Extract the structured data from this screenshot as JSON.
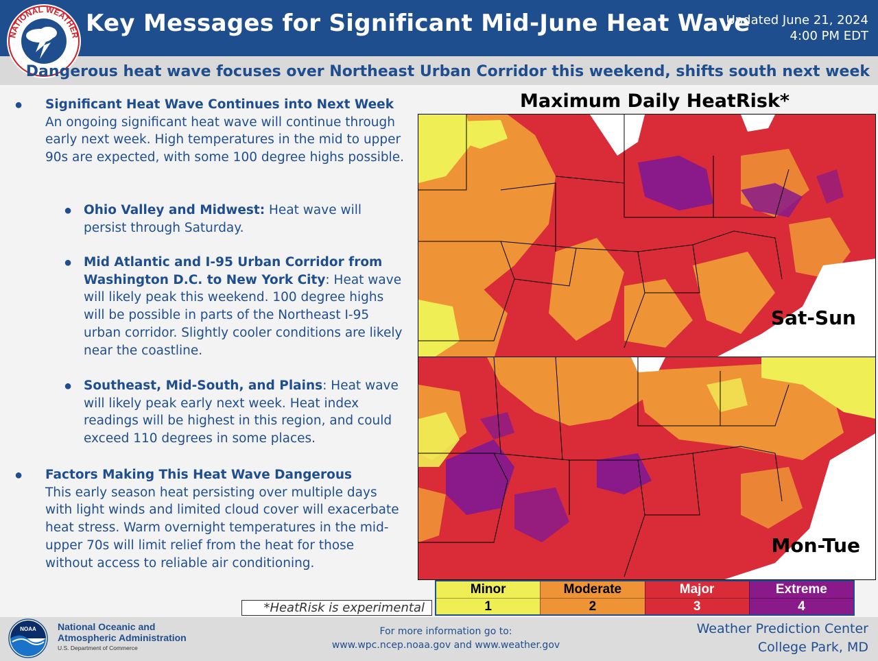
{
  "header": {
    "title": "Key Messages for Significant Mid-June Heat Wave",
    "updated_line1": "Updated June 21, 2024",
    "updated_line2": "4:00 PM EDT",
    "subtitle": "Dangerous heat wave focuses over Northeast Urban Corridor this weekend, shifts south next week",
    "logo_text": "NATIONAL WEATHER SERVICE"
  },
  "messages": {
    "m1_heading": "Significant Heat Wave Continues into Next Week",
    "m1_body": "An ongoing significant heat wave will continue through early next week. High temperatures in the mid to upper 90s are expected, with some 100 degree highs possible.",
    "s1_heading": "Ohio Valley and Midwest:",
    "s1_body": " Heat wave will persist through Saturday.",
    "s2_heading": "Mid Atlantic and I-95 Urban Corridor from Washington D.C. to New York City",
    "s2_body": ": Heat wave will likely peak this weekend. 100 degree highs will be possible in parts of the Northeast I-95 urban corridor. Slightly cooler conditions are likely near the coastline.",
    "s3_heading": "Southeast, Mid-South, and Plains",
    "s3_body": ": Heat wave will likely peak early next week. Heat index readings will be highest in this region, and could exceed 110 degrees in some places.",
    "m2_heading": "Factors Making This Heat Wave Dangerous",
    "m2_body": "This early season heat persisting over multiple days with light winds and limited cloud cover will exacerbate heat stress. Warm overnight temperatures in the mid-upper 70s will limit relief from the heat for those without access to reliable air conditioning."
  },
  "map": {
    "title": "Maximum Daily HeatRisk*",
    "panel1_label": "Sat-Sun",
    "panel2_label": "Mon-Tue",
    "footnote": "*HeatRisk is experimental"
  },
  "legend": [
    {
      "label": "Minor",
      "value": "1",
      "color": "#f0ee55",
      "text_color": "#000000"
    },
    {
      "label": "Moderate",
      "value": "2",
      "color": "#ee9436",
      "text_color": "#000000"
    },
    {
      "label": "Major",
      "value": "3",
      "color": "#d92b38",
      "text_color": "#ffffff"
    },
    {
      "label": "Extreme",
      "value": "4",
      "color": "#8a1a8a",
      "text_color": "#ffffff"
    }
  ],
  "footer": {
    "noaa_line1": "National Oceanic and",
    "noaa_line2": "Atmospheric Administration",
    "noaa_dept": "U.S. Department of Commerce",
    "noaa_logo_text": "NOAA",
    "info_line1": "For more information go to:",
    "info_line2": "www.wpc.ncep.noaa.gov and www.weather.gov",
    "wpc_line1": "Weather Prediction Center",
    "wpc_line2": "College Park, MD"
  },
  "colors": {
    "brand_blue": "#1f4e8f",
    "minor": "#f0ee55",
    "moderate": "#ee9436",
    "major": "#d92b38",
    "extreme": "#8a1a8a"
  }
}
